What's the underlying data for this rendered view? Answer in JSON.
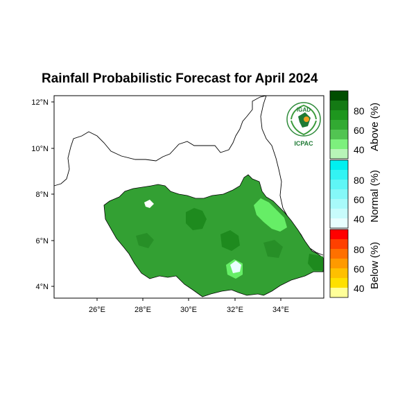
{
  "title": "Rainfall Probabilistic Forecast for April 2024",
  "logo": {
    "top_text": "IGAD",
    "bottom_text": "ICPAC"
  },
  "axes": {
    "x_ticks": [
      "26°E",
      "28°E",
      "30°E",
      "32°E",
      "34°E"
    ],
    "y_ticks": [
      "12°N",
      "10°N",
      "8°N",
      "6°N",
      "4°N"
    ]
  },
  "colorbar": {
    "groups": [
      {
        "name": "Above (%)",
        "ticks": [
          "80",
          "60",
          "40"
        ],
        "colors": [
          "#004d00",
          "#147a14",
          "#1e961e",
          "#32aa32",
          "#52c452",
          "#7df07d",
          "#b8f5b8"
        ]
      },
      {
        "name": "Normal (%)",
        "ticks": [
          "80",
          "60",
          "40"
        ],
        "colors": [
          "#00f0f0",
          "#33f3f3",
          "#5ff6f6",
          "#85f8f8",
          "#a8fafa",
          "#c8fcfc",
          "#e8fefe"
        ]
      },
      {
        "name": "Below (%)",
        "ticks": [
          "80",
          "60",
          "40"
        ],
        "colors": [
          "#ff0000",
          "#ff4000",
          "#ff7000",
          "#ff9a00",
          "#ffc000",
          "#ffe000",
          "#ffff99"
        ]
      }
    ]
  },
  "colors": {
    "above_main": "#33a033",
    "above_dark": "#1e8a1e",
    "above_light": "#66ee66",
    "normal_light": "#e0fefe"
  }
}
